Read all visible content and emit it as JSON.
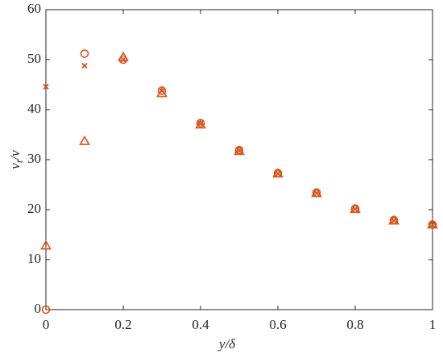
{
  "chart_data": {
    "type": "scatter",
    "xlabel": [
      "y",
      "/δ"
    ],
    "ylabel": [
      "ν",
      "t",
      "/ν"
    ],
    "x": [
      0,
      0.1,
      0.2,
      0.3,
      0.4,
      0.5,
      0.6,
      0.7,
      0.8,
      0.9,
      1
    ],
    "series": [
      {
        "marker": "circle",
        "color": "#d95319",
        "values": [
          0,
          51.2,
          50,
          43.8,
          37.3,
          31.9,
          27.3,
          23.4,
          20.2,
          17.9,
          17.0
        ]
      },
      {
        "marker": "cross",
        "color": "#d95319",
        "values": [
          44.6,
          48.8,
          50,
          43.8,
          37.2,
          31.8,
          27.2,
          23.3,
          20.1,
          17.8,
          17.0
        ]
      },
      {
        "marker": "triangle",
        "color": "#d95319",
        "values": [
          12.8,
          33.7,
          50.5,
          43.3,
          37.0,
          31.7,
          27.2,
          23.3,
          20.1,
          17.8,
          17.0
        ]
      }
    ],
    "xlim": [
      0,
      1
    ],
    "xticks": [
      0,
      0.2,
      0.4,
      0.6,
      0.8,
      1
    ],
    "ylim": [
      0,
      60
    ],
    "yticks": [
      0,
      10,
      20,
      30,
      40,
      50,
      60
    ],
    "grid": false
  }
}
